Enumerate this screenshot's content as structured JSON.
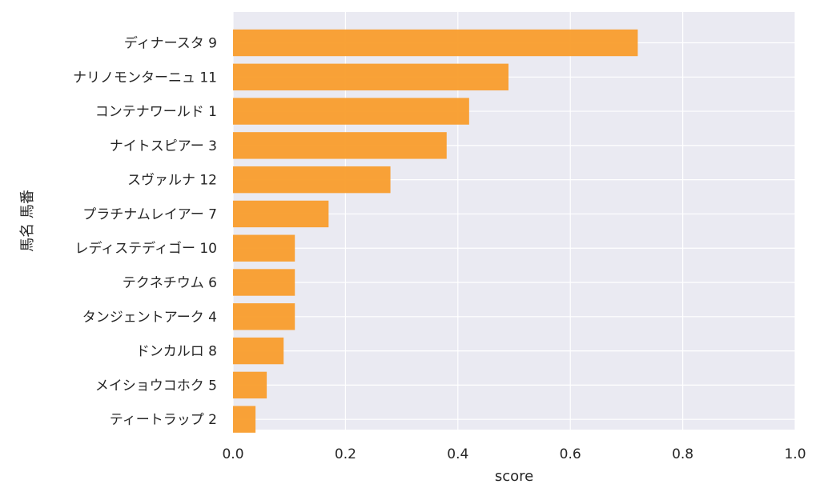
{
  "chart_data": {
    "type": "bar",
    "orientation": "horizontal",
    "categories": [
      "ディナースタ 9",
      "ナリノモンターニュ 11",
      "コンテナワールド 1",
      "ナイトスピアー 3",
      "スヴァルナ 12",
      "プラチナムレイアー 7",
      "レディステディゴー 10",
      "テクネチウム 6",
      "タンジェントアーク 4",
      "ドンカルロ 8",
      "メイショウコホク 5",
      "ティートラップ 2"
    ],
    "values": [
      0.72,
      0.49,
      0.42,
      0.38,
      0.28,
      0.17,
      0.11,
      0.11,
      0.11,
      0.09,
      0.06,
      0.04
    ],
    "xlabel": "score",
    "ylabel": "馬名 馬番",
    "xlim": [
      0.0,
      1.0
    ],
    "xticks": [
      "0.0",
      "0.2",
      "0.4",
      "0.6",
      "0.8",
      "1.0"
    ],
    "grid": true,
    "colors": {
      "bar": "#f99d2c",
      "plot_bg": "#eaeaf2",
      "grid": "#ffffff"
    }
  }
}
